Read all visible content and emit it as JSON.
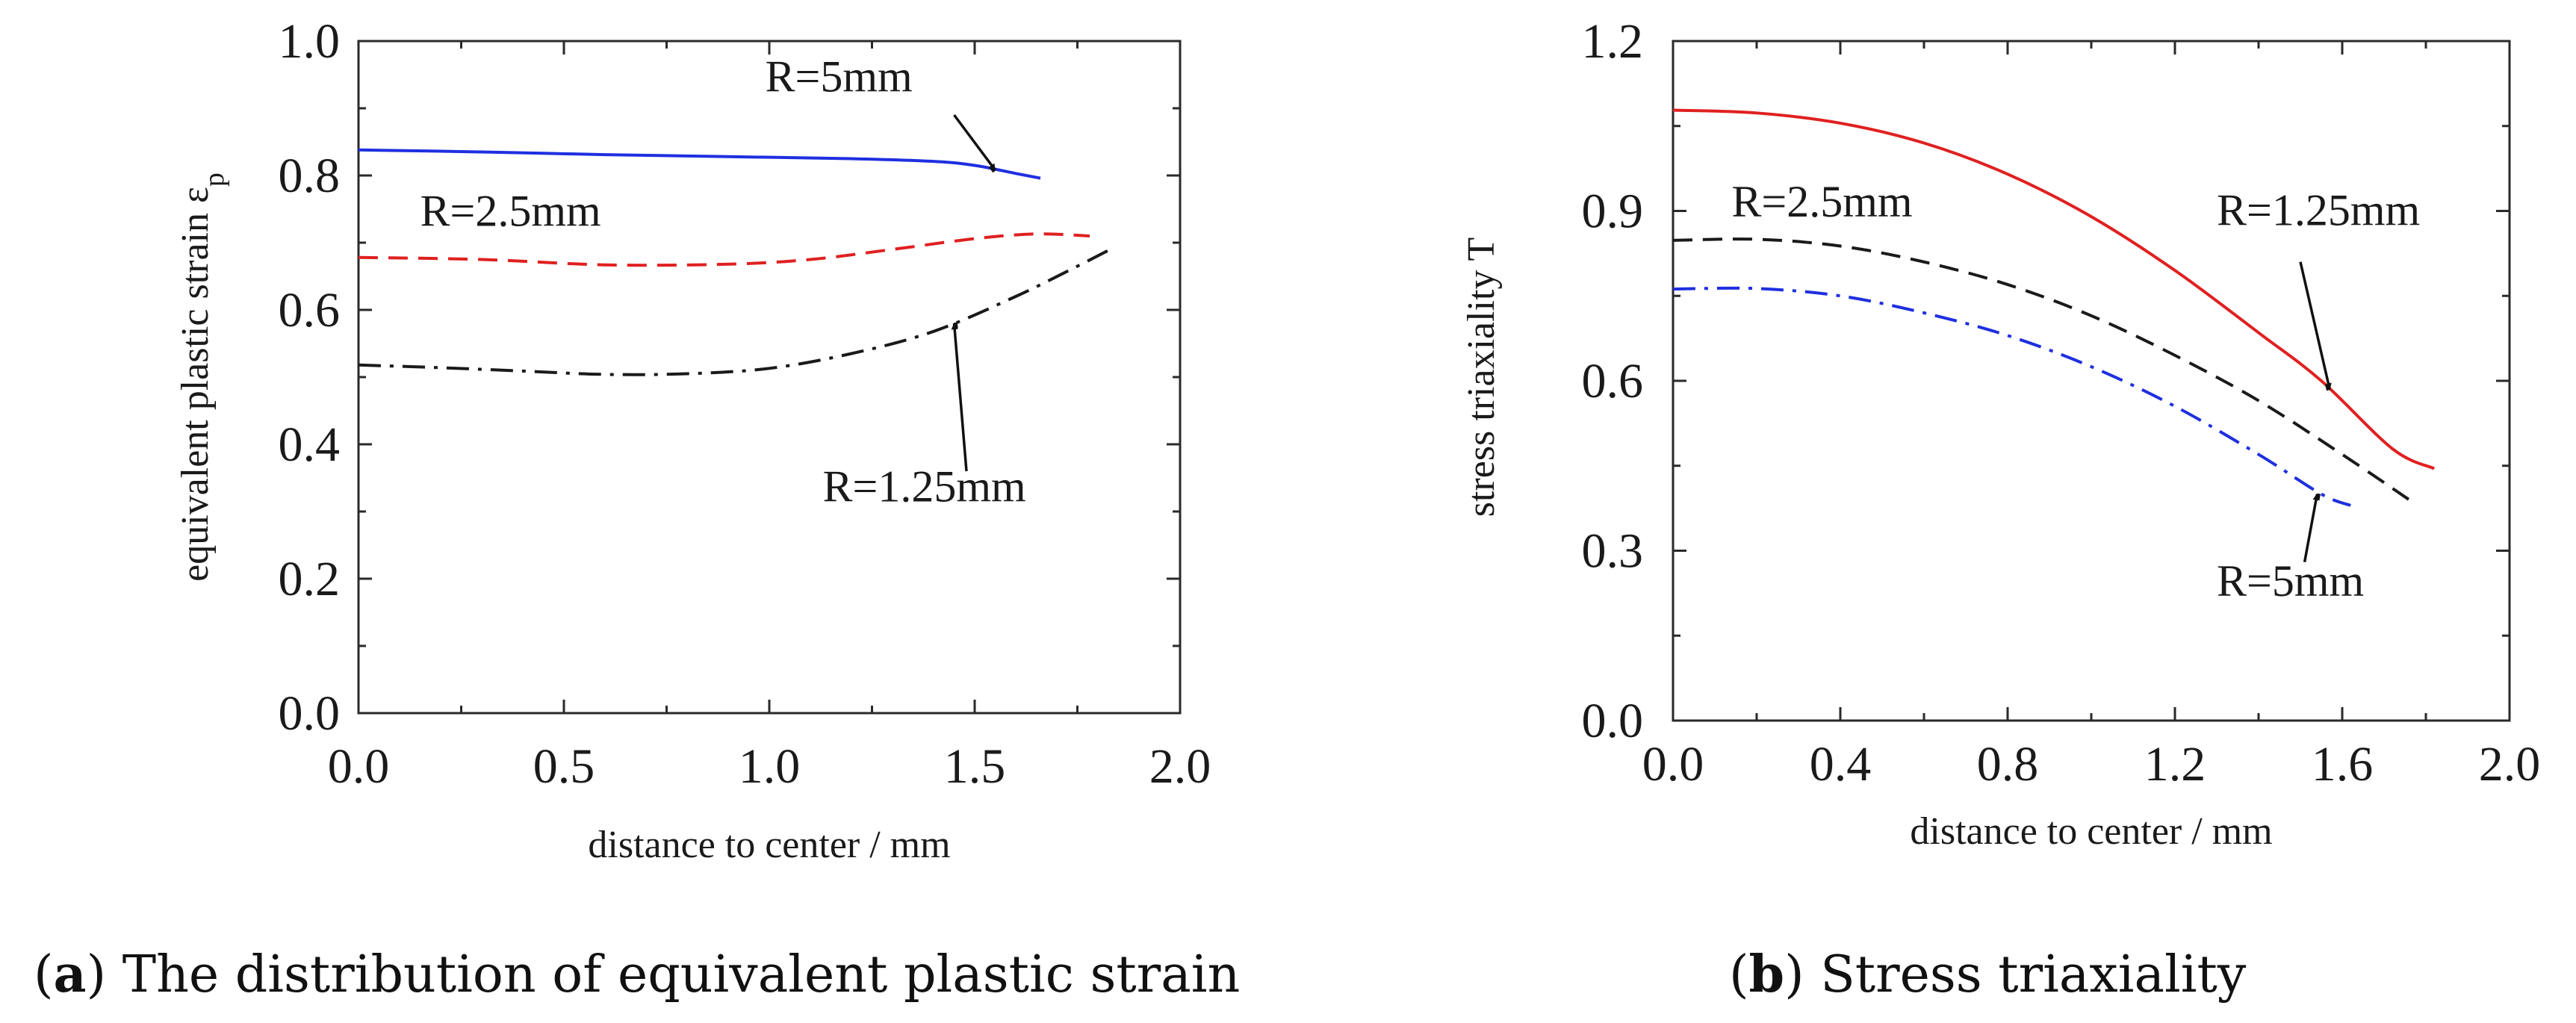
{
  "captions": {
    "a": {
      "letter": "a",
      "text": " The distribution of equivalent plastic strain"
    },
    "b": {
      "letter": "b",
      "text": " Stress triaxiality"
    }
  },
  "chart_data": [
    {
      "id": "a",
      "type": "line",
      "title": "",
      "xlabel": "distance to center / mm",
      "ylabel": "equivalent plastic strain ε",
      "ylabel_subscript": "p",
      "xlim": [
        0,
        2.0
      ],
      "ylim": [
        0,
        1.0
      ],
      "xticks": [
        0.0,
        0.5,
        1.0,
        1.5,
        2.0
      ],
      "xtick_labels": [
        "0.0",
        "0.5",
        "1.0",
        "1.5",
        "2.0"
      ],
      "yticks": [
        0.0,
        0.2,
        0.4,
        0.6,
        0.8,
        1.0
      ],
      "ytick_labels": [
        "0.0",
        "0.2",
        "0.4",
        "0.6",
        "0.8",
        "1.0"
      ],
      "series": [
        {
          "name": "R=5mm",
          "color": "#1f2fe0",
          "dash": "solid",
          "x": [
            0.0,
            0.3,
            0.6,
            0.9,
            1.2,
            1.4,
            1.5,
            1.6,
            1.66
          ],
          "y": [
            0.838,
            0.835,
            0.831,
            0.828,
            0.825,
            0.821,
            0.815,
            0.803,
            0.796
          ]
        },
        {
          "name": "R=2.5mm",
          "color": "#e02020",
          "dash": "dashed",
          "x": [
            0.0,
            0.3,
            0.6,
            0.9,
            1.1,
            1.3,
            1.5,
            1.65,
            1.78
          ],
          "y": [
            0.678,
            0.675,
            0.667,
            0.668,
            0.675,
            0.69,
            0.706,
            0.713,
            0.71
          ]
        },
        {
          "name": "R=1.25mm",
          "color": "#1a1a1a",
          "dash": "dashdot",
          "x": [
            0.0,
            0.2,
            0.4,
            0.6,
            0.8,
            1.0,
            1.2,
            1.4,
            1.6,
            1.75,
            1.83
          ],
          "y": [
            0.518,
            0.514,
            0.509,
            0.504,
            0.505,
            0.513,
            0.535,
            0.568,
            0.62,
            0.665,
            0.69
          ]
        }
      ],
      "annotations": [
        {
          "text": "R=5mm",
          "label_x": 0.99,
          "label_y": 0.925,
          "arrow_from": [
            1.45,
            0.89
          ],
          "arrow_to": [
            1.55,
            0.808
          ]
        },
        {
          "text": "R=2.5mm",
          "label_x": 0.15,
          "label_y": 0.725
        },
        {
          "text": "R=1.25mm",
          "label_x": 1.13,
          "label_y": 0.315,
          "arrow_from": [
            1.48,
            0.36
          ],
          "arrow_to": [
            1.45,
            0.58
          ]
        }
      ]
    },
    {
      "id": "b",
      "type": "line",
      "title": "",
      "xlabel": "distance to center / mm",
      "ylabel": "stress triaxiality T",
      "xlim": [
        0,
        2.0
      ],
      "ylim": [
        0,
        1.2
      ],
      "xticks": [
        0.0,
        0.4,
        0.8,
        1.2,
        1.6,
        2.0
      ],
      "xtick_labels": [
        "0.0",
        "0.4",
        "0.8",
        "1.2",
        "1.6",
        "2.0"
      ],
      "yticks": [
        0.0,
        0.3,
        0.6,
        0.9,
        1.2
      ],
      "ytick_labels": [
        "0.0",
        "0.3",
        "0.6",
        "0.9",
        "1.2"
      ],
      "series": [
        {
          "name": "R=1.25mm",
          "color": "#e02020",
          "dash": "solid",
          "x": [
            0.0,
            0.2,
            0.4,
            0.6,
            0.8,
            1.0,
            1.2,
            1.4,
            1.55,
            1.72,
            1.82
          ],
          "y": [
            1.078,
            1.073,
            1.055,
            1.02,
            0.965,
            0.89,
            0.795,
            0.685,
            0.6,
            0.48,
            0.445
          ]
        },
        {
          "name": "R=2.5mm",
          "color": "#1a1a1a",
          "dash": "dashed",
          "x": [
            0.0,
            0.2,
            0.4,
            0.6,
            0.8,
            1.0,
            1.2,
            1.4,
            1.6,
            1.76
          ],
          "y": [
            0.848,
            0.85,
            0.838,
            0.81,
            0.77,
            0.715,
            0.645,
            0.565,
            0.47,
            0.39
          ]
        },
        {
          "name": "R=5mm",
          "color": "#1f2fe0",
          "dash": "dashdot",
          "x": [
            0.0,
            0.2,
            0.4,
            0.6,
            0.8,
            1.0,
            1.2,
            1.4,
            1.55,
            1.62
          ],
          "y": [
            0.762,
            0.763,
            0.75,
            0.72,
            0.68,
            0.625,
            0.555,
            0.47,
            0.4,
            0.38
          ]
        }
      ],
      "annotations": [
        {
          "text": "R=2.5mm",
          "label_x": 0.14,
          "label_y": 0.89
        },
        {
          "text": "R=1.25mm",
          "label_x": 1.3,
          "label_y": 0.875,
          "arrow_from": [
            1.5,
            0.81
          ],
          "arrow_to": [
            1.57,
            0.585
          ]
        },
        {
          "text": "R=5mm",
          "label_x": 1.3,
          "label_y": 0.22,
          "arrow_from": [
            1.51,
            0.28
          ],
          "arrow_to": [
            1.54,
            0.4
          ]
        }
      ]
    }
  ]
}
